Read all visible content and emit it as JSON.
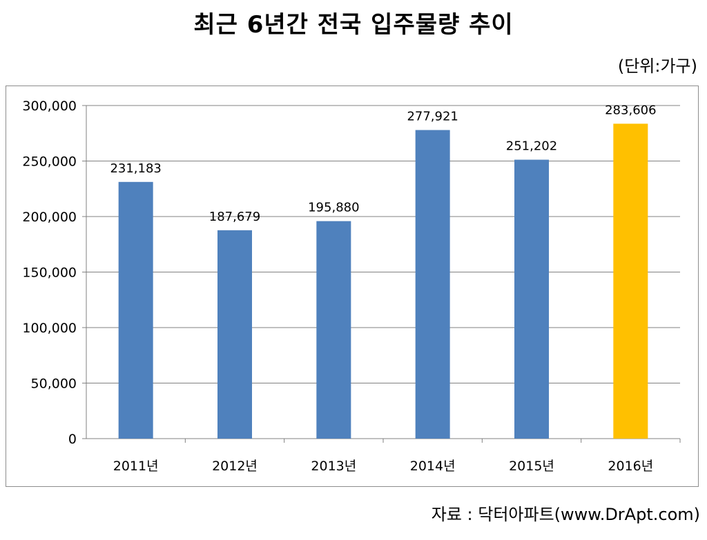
{
  "title": "최근 6년간 전국 입주물량 추이",
  "unit_label": "(단위:가구)",
  "source": "자료 : 닥터아파트(www.DrApt.com)",
  "chart_data": {
    "type": "bar",
    "categories": [
      "2011년",
      "2012년",
      "2013년",
      "2014년",
      "2015년",
      "2016년"
    ],
    "values": [
      231183,
      187679,
      195880,
      277921,
      251202,
      283606
    ],
    "data_labels": [
      "231,183",
      "187,679",
      "195,880",
      "277,921",
      "251,202",
      "283,606"
    ],
    "yticks": [
      "0",
      "50,000",
      "100,000",
      "150,000",
      "200,000",
      "250,000",
      "300,000"
    ],
    "ylim": [
      0,
      300000
    ],
    "grid": true,
    "legend": "none",
    "colors": {
      "bar": "#4f81bd",
      "highlight_bar": "#ffc000",
      "grid": "#808080",
      "axis": "#808080"
    },
    "highlight_index": 5
  }
}
